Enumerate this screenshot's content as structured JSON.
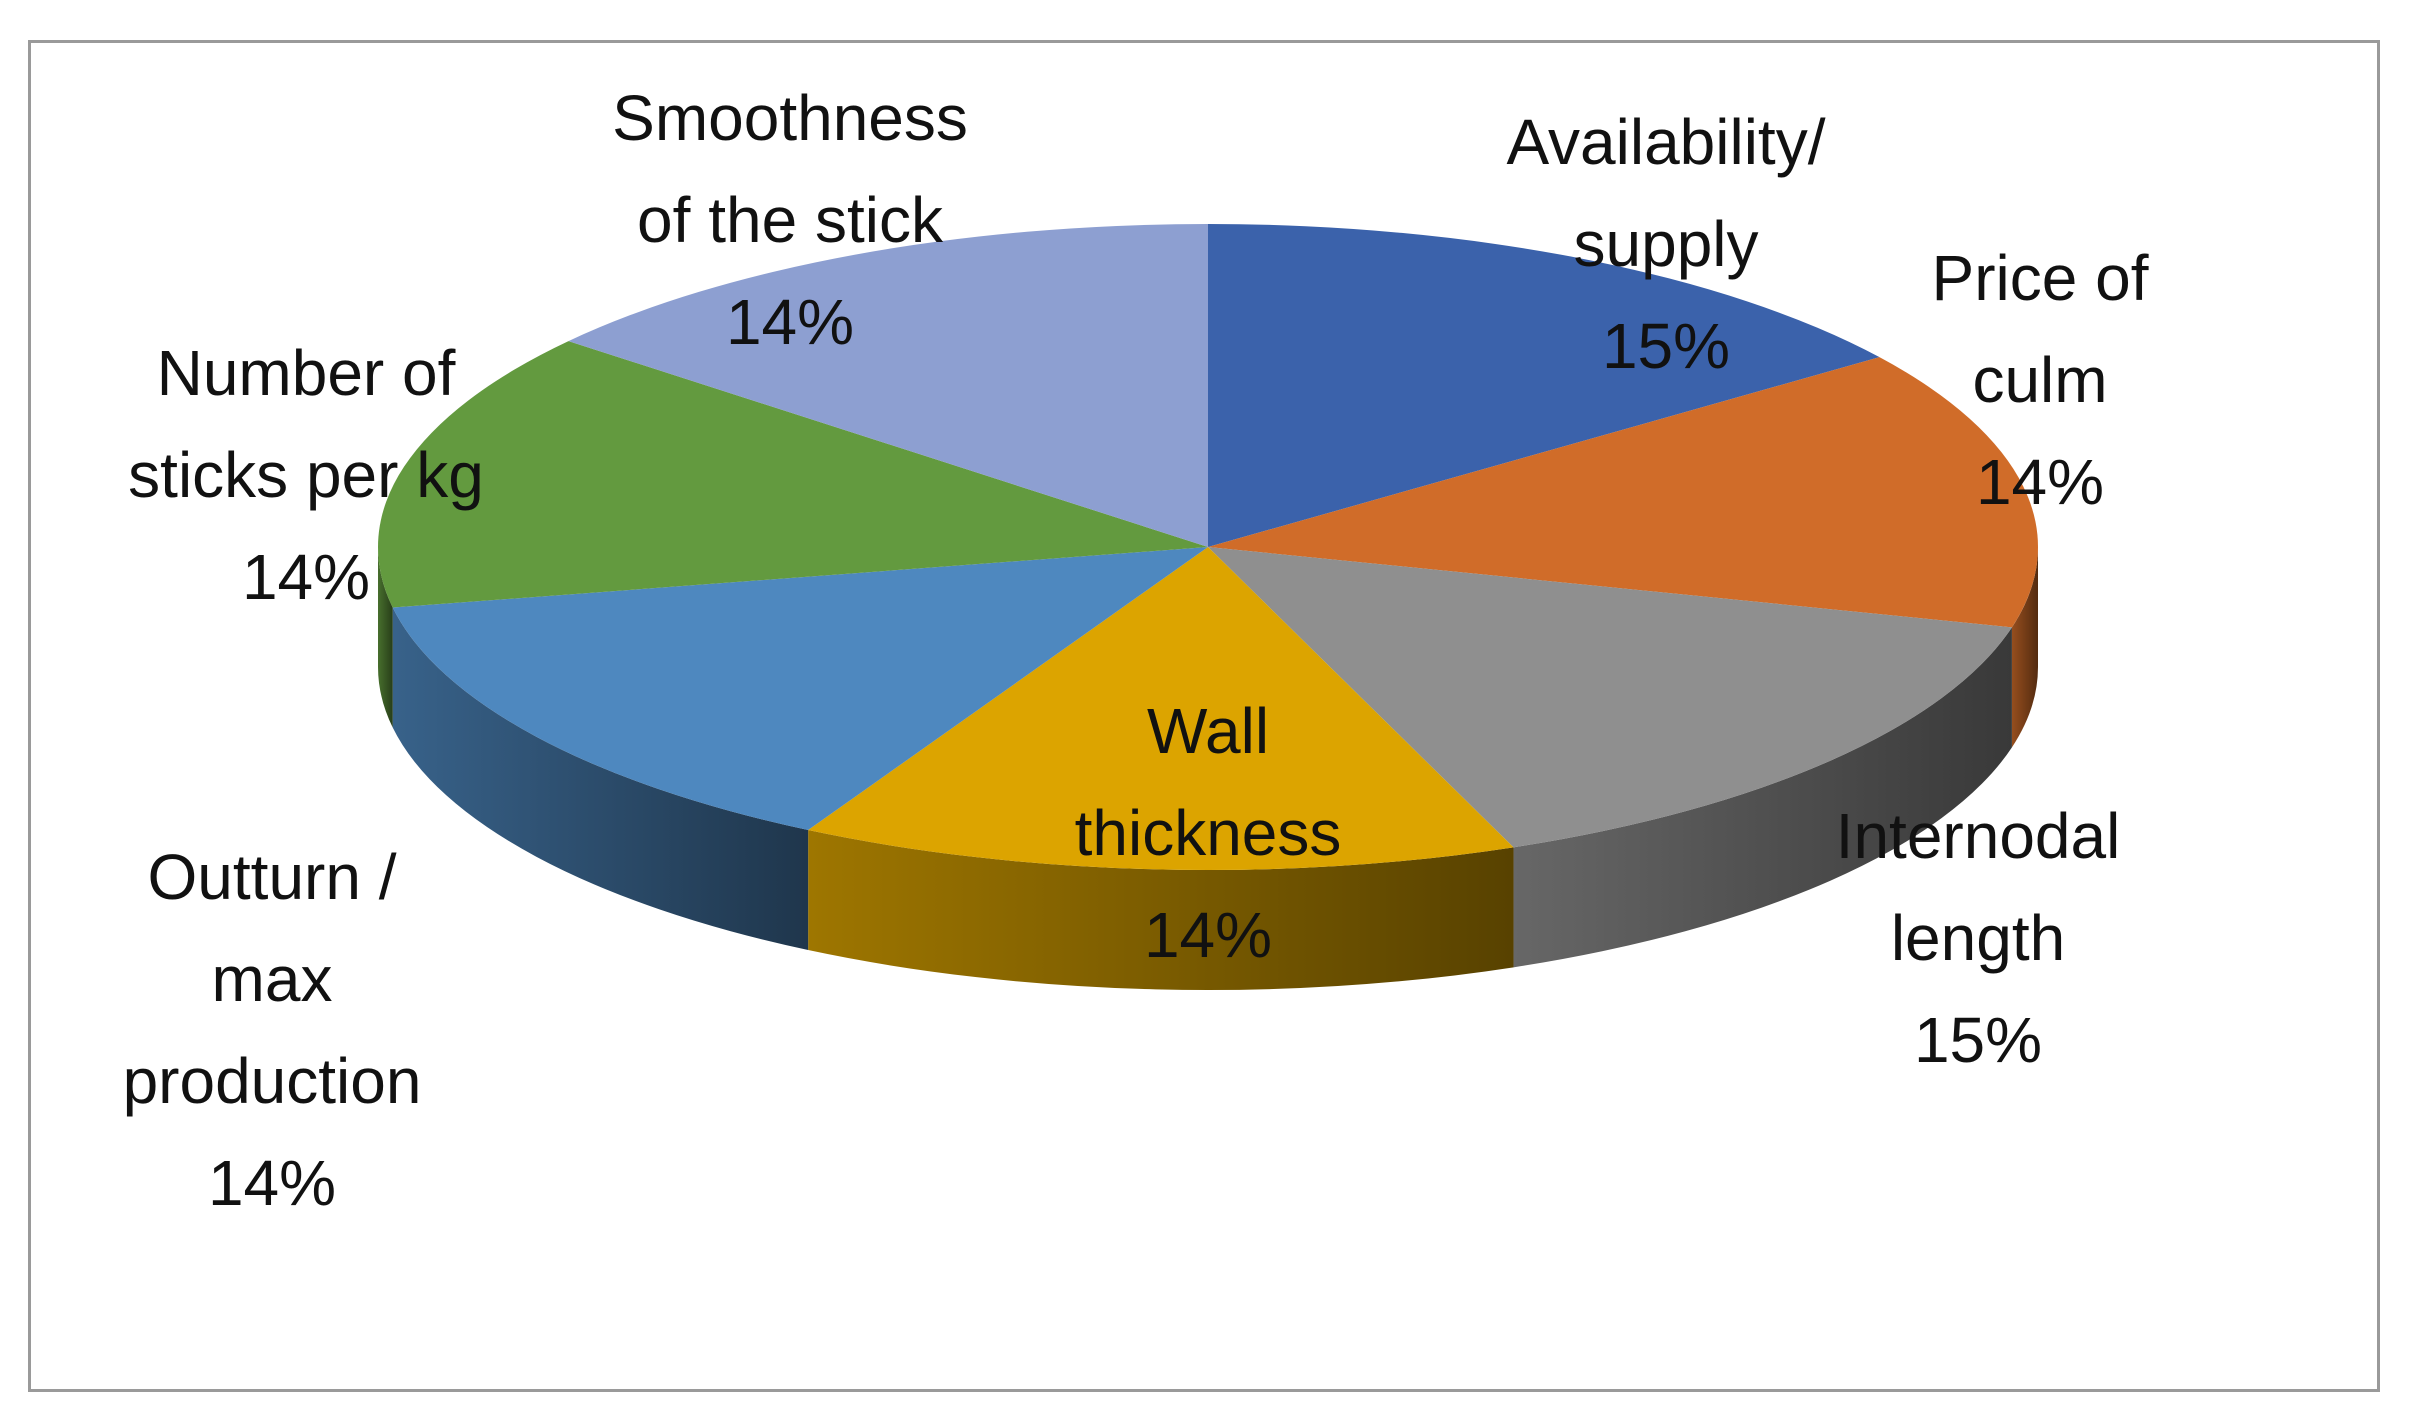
{
  "chart_data": {
    "type": "pie",
    "style": "3d",
    "start_angle_deg": 0,
    "direction": "clockwise",
    "labels": [
      "Availability/ supply",
      "Price of culm",
      "Internodal length",
      "Wall thickness",
      "Outturn / max production",
      "Number of sticks per kg",
      "Smoothness of the stick"
    ],
    "values": [
      15,
      14,
      15,
      14,
      14,
      14,
      14
    ],
    "percent_labels": [
      "15%",
      "14%",
      "15%",
      "14%",
      "14%",
      "14%",
      "14%"
    ],
    "colors": [
      "#3b62ab",
      "#d06c29",
      "#8f8f8f",
      "#dca400",
      "#4e88bf",
      "#639a3f",
      "#8d9fd1"
    ],
    "label_lines": [
      [
        "Availability/",
        "supply"
      ],
      [
        "Price of",
        "culm"
      ],
      [
        "Internodal",
        "length"
      ],
      [
        "Wall",
        "thickness"
      ],
      [
        "Outturn /",
        "max",
        "production"
      ],
      [
        "Number of",
        "sticks per kg"
      ],
      [
        "Smoothness",
        "of the stick"
      ]
    ]
  }
}
